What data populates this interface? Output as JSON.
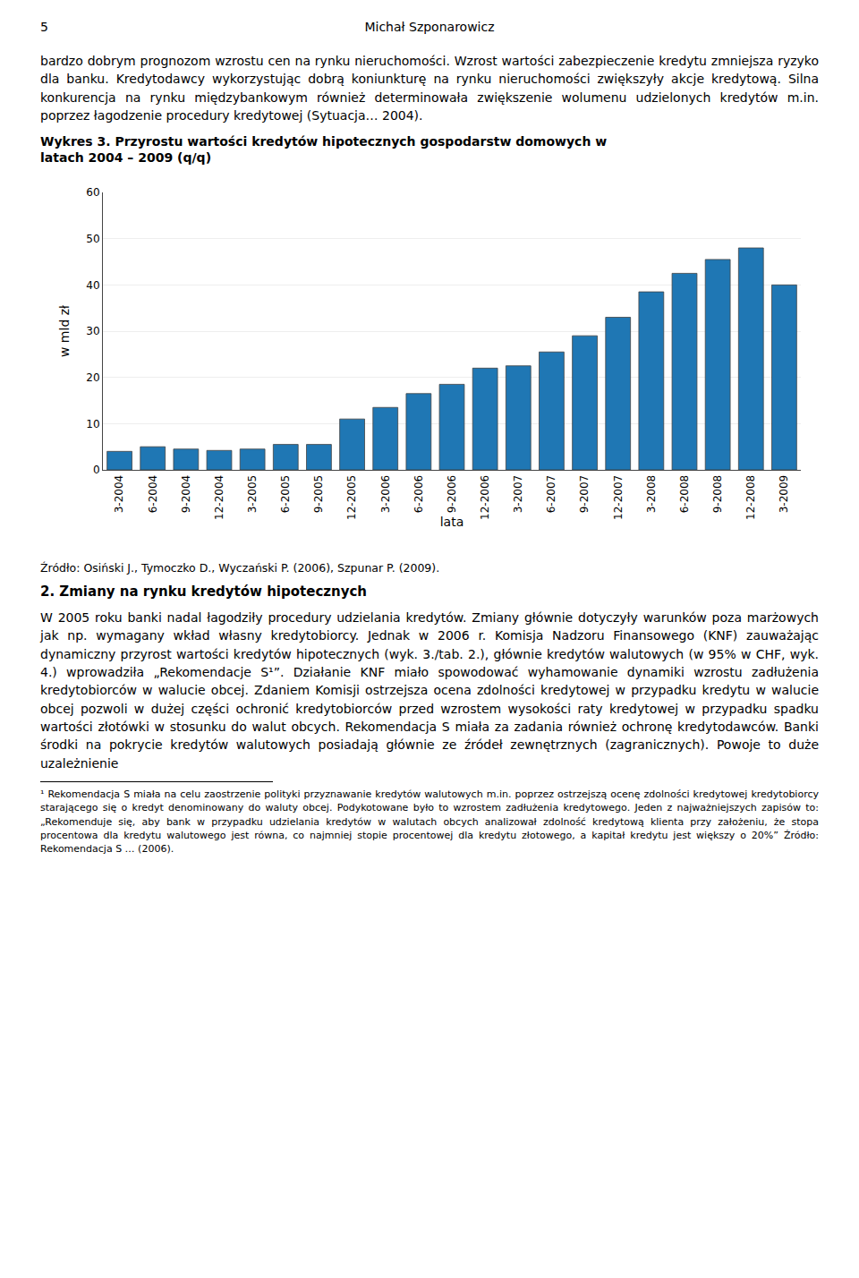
{
  "chart_data": {
    "type": "bar",
    "title": "Wykres 3. Przyrostu wartości kredytów hipotecznych gospodarstw domowych w\nlatach 2004 – 2009 (q/q)",
    "xlabel": "lata",
    "ylabel": "w mld zł",
    "categories": [
      "3-2004",
      "6-2004",
      "9-2004",
      "12-2004",
      "3-2005",
      "6-2005",
      "9-2005",
      "12-2005",
      "3-2006",
      "6-2006",
      "9-2006",
      "12-2006",
      "3-2007",
      "6-2007",
      "9-2007",
      "12-2007",
      "3-2008",
      "6-2008",
      "9-2008",
      "12-2008",
      "3-2009"
    ],
    "values": [
      4.0,
      5.0,
      4.5,
      4.2,
      4.5,
      5.5,
      5.5,
      11.0,
      13.5,
      16.5,
      18.5,
      22.0,
      22.5,
      25.5,
      29.0,
      33.0,
      38.5,
      42.5,
      45.5,
      48.0,
      40.0
    ],
    "ylim": [
      0,
      60
    ],
    "yticks": [
      0,
      10,
      20,
      30,
      40,
      50,
      60
    ],
    "grid": true,
    "annotations": [
      "5",
      "Michał Szponarowicz",
      "bardzo dobrym prognozom wzrostu cen na rynku nieruchomości. Wzrost wartości zabezpieczenie kredytu zmniejsza ryzyko dla banku. Kredytodawcy wykorzystując dobrą koniunkturę na rynku nieruchomości zwiększyły akcje kredytową. Silna konkurencja na rynku międzybankowym również determinowała zwiększenie wolumenu udzielonych kredytów m.in. poprzez łagodzenie procedury kredytowej (Sytuacja… 2004).",
      "Źródło: Osiński J., Tymoczko D., Wyczański P. (2006), Szpunar P. (2009).",
      "2. Zmiany na rynku kredytów hipotecznych",
      "W 2005 roku banki nadal łagodziły procedury udzielania kredytów. Zmiany głównie dotyczyły warunków poza marżowych jak np. wymagany wkład własny kredytobiorcy. Jednak w 2006 r. Komisja Nadzoru Finansowego (KNF) zauważając dynamiczny przyrost wartości kredytów hipotecznych (wyk. 3./tab. 2.), głównie kredytów walutowych (w 95% w CHF, wyk. 4.) wprowadziła „Rekomendacje S¹”. Działanie KNF miało spowodować wyhamowanie dynamiki wzrostu zadłużenia kredytobiorców w walucie obcej. Zdaniem Komisji ostrzejsza ocena zdolności kredytowej w przypadku kredytu w walucie obcej pozwoli w dużej części ochronić kredytobiorców przed wzrostem wysokości raty kredytowej w przypadku spadku wartości złotówki w stosunku do walut obcych. Rekomendacja S miała za zadania również ochronę kredytodawców. Banki środki na pokrycie kredytów walutowych posiadają głównie ze źródeł zewnętrznych (zagranicznych). Powoje to duże uzależnienie",
      "¹ Rekomendacja S miała na celu zaostrzenie polityki przyznawanie kredytów walutowych m.in. poprzez ostrzejszą ocenę zdolności kredytowej kredytobiorcy starającego się o kredyt denominowany do waluty obcej. Podykotowane było to wzrostem zadłużenia kredytowego. Jeden z najważniejszych zapisów to: „Rekomenduje się, aby bank w przypadku udzielania kredytów w walutach obcych analizował zdolność kredytową klienta przy założeniu, że stopa procentowa dla kredytu walutowego jest równa, co najmniej stopie procentowej dla kredytu złotowego, a kapitał kredytu jest większy o 20%” Źródło: Rekomendacja S … (2006)."
    ]
  }
}
